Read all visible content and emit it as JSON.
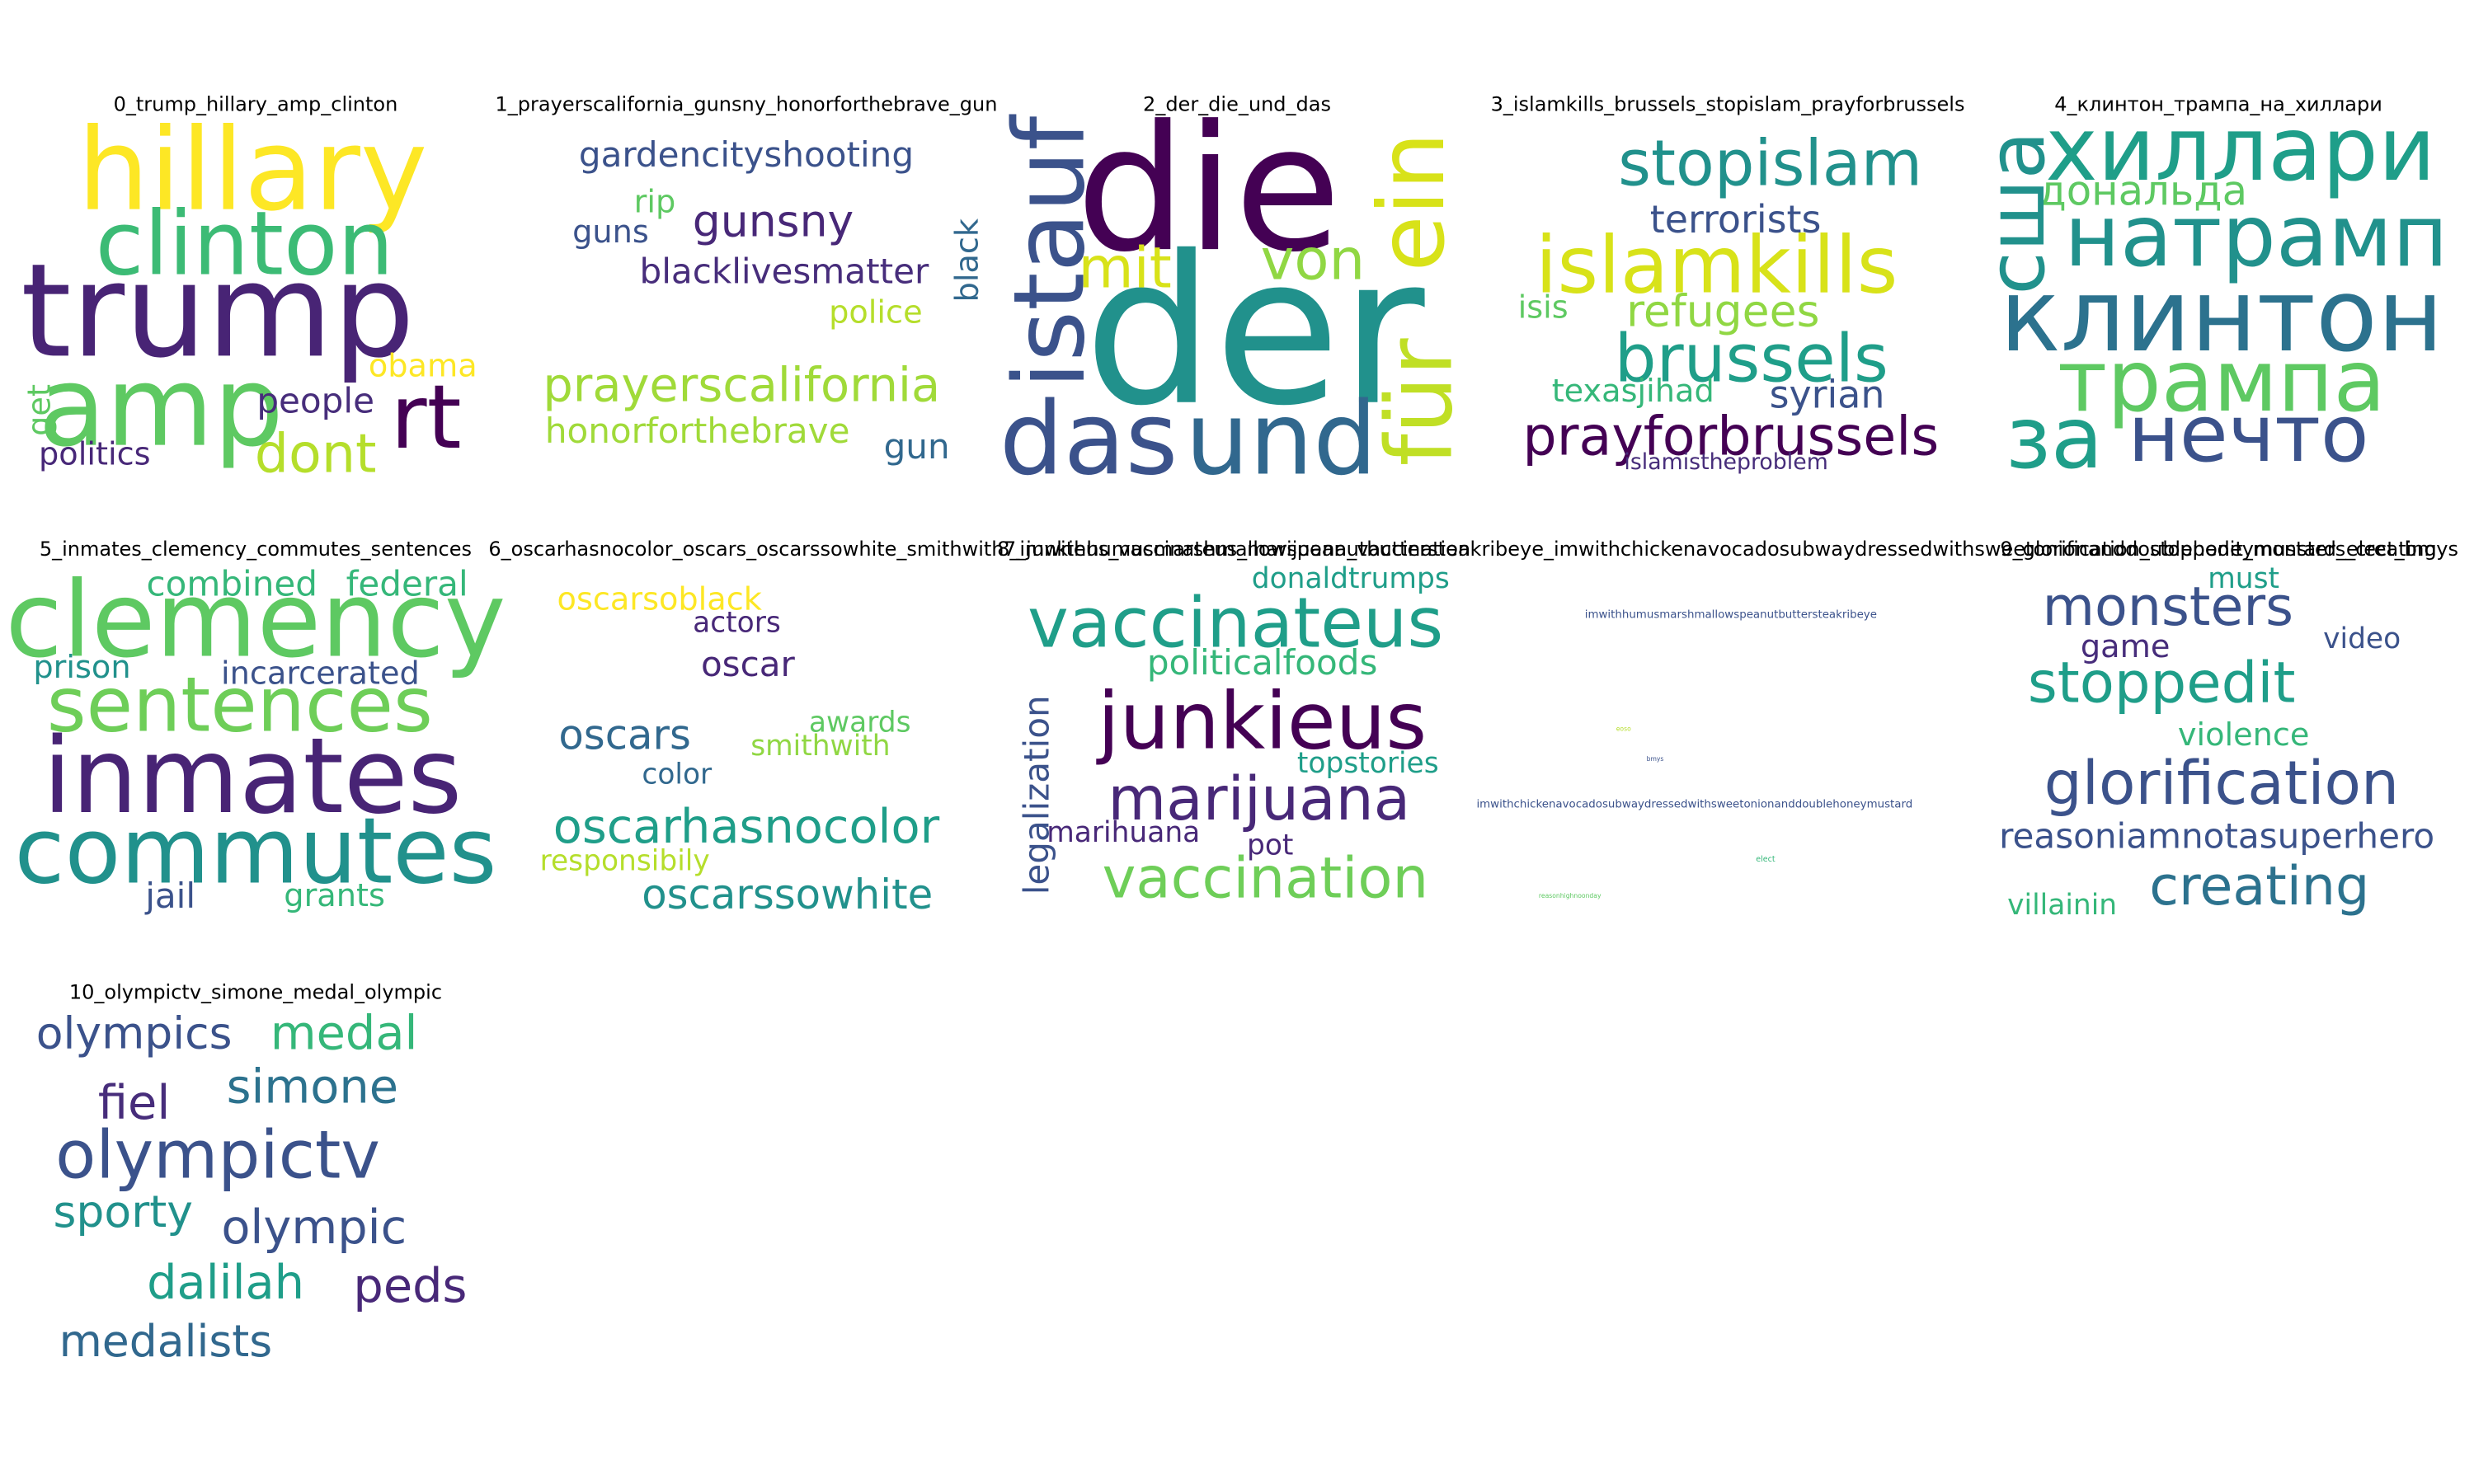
{
  "panels": [
    {
      "title": "0_trump_hillary_amp_clinton",
      "words": [
        {
          "text": "hillary",
          "color": "#fde725"
        },
        {
          "text": "clinton",
          "color": "#3cbb75"
        },
        {
          "text": "trump",
          "color": "#482475"
        },
        {
          "text": "amp",
          "color": "#5ec962"
        },
        {
          "text": "rt",
          "color": "#440154"
        },
        {
          "text": "dont",
          "color": "#b5de2b"
        },
        {
          "text": "people",
          "color": "#472d7b"
        },
        {
          "text": "obama",
          "color": "#fde725"
        },
        {
          "text": "politics",
          "color": "#482878"
        },
        {
          "text": "get",
          "color": "#5ec962"
        }
      ]
    },
    {
      "title": "1_prayerscalifornia_gunsny_honorforthebrave_gun",
      "words": [
        {
          "text": "gardencityshooting",
          "color": "#3b528b"
        },
        {
          "text": "rip",
          "color": "#5ec962"
        },
        {
          "text": "gunsny",
          "color": "#482878"
        },
        {
          "text": "guns",
          "color": "#3b528b"
        },
        {
          "text": "blacklivesmatter",
          "color": "#472d7b"
        },
        {
          "text": "black",
          "color": "#31688e"
        },
        {
          "text": "police",
          "color": "#b5de2b"
        },
        {
          "text": "prayerscalifornia",
          "color": "#a0da39"
        },
        {
          "text": "honorforthebrave",
          "color": "#a0da39"
        },
        {
          "text": "gun",
          "color": "#31688e"
        }
      ]
    },
    {
      "title": "2_der_die_und_das",
      "words": [
        {
          "text": "die",
          "color": "#440154"
        },
        {
          "text": "der",
          "color": "#21918c"
        },
        {
          "text": "und",
          "color": "#31688e"
        },
        {
          "text": "das",
          "color": "#3b528b"
        },
        {
          "text": "istauf",
          "color": "#3b528b"
        },
        {
          "text": "mit",
          "color": "#d8e219"
        },
        {
          "text": "von",
          "color": "#90d743"
        },
        {
          "text": "ein",
          "color": "#d8e219"
        },
        {
          "text": "für",
          "color": "#c0df25"
        }
      ]
    },
    {
      "title": "3_islamkills_brussels_stopislam_prayforbrussels",
      "words": [
        {
          "text": "stopislam",
          "color": "#21918c"
        },
        {
          "text": "terrorists",
          "color": "#3b528b"
        },
        {
          "text": "islamkills",
          "color": "#d8e219"
        },
        {
          "text": "refugees",
          "color": "#90d743"
        },
        {
          "text": "isis",
          "color": "#5ec962"
        },
        {
          "text": "brussels",
          "color": "#1f9e89"
        },
        {
          "text": "texasjihad",
          "color": "#35b779"
        },
        {
          "text": "syrian",
          "color": "#3b528b"
        },
        {
          "text": "prayforbrussels",
          "color": "#440154"
        },
        {
          "text": "islamistheproblem",
          "color": "#472d7b"
        }
      ]
    },
    {
      "title": "4_клинтон_трампа_на_хиллари",
      "words": [
        {
          "text": "хиллари",
          "color": "#1f9e89"
        },
        {
          "text": "дональда",
          "color": "#5ec962"
        },
        {
          "text": "сша",
          "color": "#21918c"
        },
        {
          "text": "натрамп",
          "color": "#21918c"
        },
        {
          "text": "клинтон",
          "color": "#2c728e"
        },
        {
          "text": "трампа",
          "color": "#5ec962"
        },
        {
          "text": "за",
          "color": "#1f9e89"
        },
        {
          "text": "нечто",
          "color": "#3b528b"
        }
      ]
    },
    {
      "title": "5_inmates_clemency_commutes_sentences",
      "words": [
        {
          "text": "clemency",
          "color": "#5ec962"
        },
        {
          "text": "combined",
          "color": "#35b779"
        },
        {
          "text": "federal",
          "color": "#35b779"
        },
        {
          "text": "prison",
          "color": "#21918c"
        },
        {
          "text": "incarcerated",
          "color": "#3b528b"
        },
        {
          "text": "sentences",
          "color": "#6ece58"
        },
        {
          "text": "inmates",
          "color": "#482475"
        },
        {
          "text": "commutes",
          "color": "#21918c"
        },
        {
          "text": "jail",
          "color": "#3b528b"
        },
        {
          "text": "grants",
          "color": "#35b779"
        }
      ]
    },
    {
      "title": "6_oscarhasnocolor_oscars_oscarssowhite_smithwith",
      "words": [
        {
          "text": "oscarsoblack",
          "color": "#fde725"
        },
        {
          "text": "actors",
          "color": "#482878"
        },
        {
          "text": "oscar",
          "color": "#482878"
        },
        {
          "text": "awards",
          "color": "#5ec962"
        },
        {
          "text": "smithwith",
          "color": "#90d743"
        },
        {
          "text": "oscars",
          "color": "#31688e"
        },
        {
          "text": "color",
          "color": "#31688e"
        },
        {
          "text": "oscarhasnocolor",
          "color": "#1f9e89"
        },
        {
          "text": "responsibily",
          "color": "#b5de2b"
        },
        {
          "text": "oscarssowhite",
          "color": "#21918c"
        }
      ]
    },
    {
      "title": "7_junkieus_vaccinateus_marijuana_vaccination",
      "words": [
        {
          "text": "donaldtrumps",
          "color": "#1f9e89"
        },
        {
          "text": "vaccinateus",
          "color": "#1f9e89"
        },
        {
          "text": "politicalfoods",
          "color": "#35b779"
        },
        {
          "text": "legalization",
          "color": "#3b528b"
        },
        {
          "text": "junkieus",
          "color": "#440154"
        },
        {
          "text": "topstories",
          "color": "#1f9e89"
        },
        {
          "text": "marijuana",
          "color": "#482878"
        },
        {
          "text": "marihuana",
          "color": "#482878"
        },
        {
          "text": "pot",
          "color": "#482878"
        },
        {
          "text": "vaccination",
          "color": "#6ece58"
        }
      ]
    },
    {
      "title": "8_imwithhumusmarshmallowspeanutbuttersteakribeye_imwithchickenavocadosubwaydressedwithsweetonionanddoublehoneymustard_elect_bmys",
      "words": [
        {
          "text": "imwithhumusmarshmallowspeanutbuttersteakribeye",
          "color": "#3b528b"
        },
        {
          "text": "imwithchickenavocadosubwaydressedwithsweetonionanddoublehoneymustard",
          "color": "#3b528b"
        },
        {
          "text": "elect",
          "color": "#35b779"
        },
        {
          "text": "bmys",
          "color": "#3b528b"
        },
        {
          "text": "eoso",
          "color": "#b5de2b"
        },
        {
          "text": "reasonhighnoonday",
          "color": "#5ec962"
        }
      ]
    },
    {
      "title": "9_glorification_stoppedit_monsters_creating",
      "words": [
        {
          "text": "must",
          "color": "#1f9e89"
        },
        {
          "text": "monsters",
          "color": "#3b528b"
        },
        {
          "text": "video",
          "color": "#3b528b"
        },
        {
          "text": "game",
          "color": "#472d7b"
        },
        {
          "text": "stoppedit",
          "color": "#1f9e89"
        },
        {
          "text": "violence",
          "color": "#35b779"
        },
        {
          "text": "glorification",
          "color": "#3b528b"
        },
        {
          "text": "reasoniamnotasuperhero",
          "color": "#3b528b"
        },
        {
          "text": "creating",
          "color": "#2c728e"
        },
        {
          "text": "villainin",
          "color": "#35b779"
        }
      ]
    },
    {
      "title": "10_olympictv_simone_medal_olympic",
      "words": [
        {
          "text": "olympics",
          "color": "#3b528b"
        },
        {
          "text": "medal",
          "color": "#35b779"
        },
        {
          "text": "fiel",
          "color": "#472d7b"
        },
        {
          "text": "simone",
          "color": "#2c728e"
        },
        {
          "text": "olympictv",
          "color": "#3b528b"
        },
        {
          "text": "sporty",
          "color": "#21918c"
        },
        {
          "text": "olympic",
          "color": "#3b528b"
        },
        {
          "text": "dalilah",
          "color": "#1f9e89"
        },
        {
          "text": "peds",
          "color": "#482878"
        },
        {
          "text": "medalists",
          "color": "#31688e"
        }
      ]
    }
  ]
}
